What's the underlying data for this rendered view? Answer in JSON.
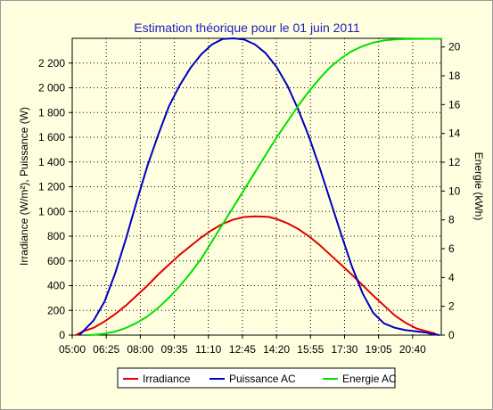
{
  "chart_data": {
    "type": "line",
    "title": "Estimation théorique pour le 01 juin 2011",
    "ylabel_left": "Irradiance (W/m²), Puissance (W)",
    "ylabel_right": "Energie (kWh)",
    "xlabel": "",
    "x_ticks": [
      "05:00",
      "06:25",
      "08:00",
      "09:35",
      "11:10",
      "12:45",
      "14:20",
      "15:55",
      "17:30",
      "19:05",
      "20:40"
    ],
    "x_range_minutes": [
      300,
      1330
    ],
    "y_left_ticks": [
      "0",
      "200",
      "400",
      "600",
      "800",
      "1 000",
      "1 200",
      "1 400",
      "1 600",
      "1 800",
      "2 000",
      "2 200"
    ],
    "y_left_range": [
      0,
      2400
    ],
    "y_right_ticks": [
      "0",
      "2",
      "4",
      "6",
      "8",
      "10",
      "12",
      "14",
      "16",
      "18",
      "20"
    ],
    "y_right_range": [
      0,
      20.6
    ],
    "grid": true,
    "legend_position": "bottom",
    "series": [
      {
        "name": "Irradiance",
        "axis": "left",
        "color": "#e00000",
        "x": [
          310,
          330,
          360,
          390,
          420,
          450,
          480,
          510,
          540,
          570,
          600,
          630,
          660,
          690,
          720,
          750,
          780,
          810,
          840,
          850,
          870,
          900,
          930,
          960,
          990,
          1020,
          1050,
          1080,
          1110,
          1140,
          1170,
          1200,
          1230,
          1260,
          1290,
          1310,
          1320
        ],
        "y": [
          0,
          30,
          60,
          110,
          170,
          240,
          320,
          400,
          490,
          570,
          650,
          720,
          790,
          850,
          900,
          935,
          955,
          960,
          958,
          955,
          940,
          905,
          860,
          800,
          730,
          650,
          570,
          490,
          405,
          320,
          240,
          160,
          100,
          55,
          30,
          15,
          0
        ]
      },
      {
        "name": "Puissance AC",
        "axis": "left",
        "color": "#0000c0",
        "x": [
          320,
          340,
          360,
          390,
          420,
          450,
          480,
          510,
          540,
          570,
          600,
          630,
          660,
          690,
          720,
          750,
          780,
          810,
          840,
          870,
          900,
          930,
          960,
          990,
          1020,
          1050,
          1080,
          1110,
          1140,
          1170,
          1200,
          1230,
          1260,
          1290,
          1300,
          1315,
          1325
        ],
        "y": [
          0,
          60,
          120,
          270,
          500,
          780,
          1080,
          1370,
          1620,
          1850,
          2020,
          2160,
          2270,
          2350,
          2395,
          2400,
          2390,
          2350,
          2280,
          2170,
          2020,
          1830,
          1610,
          1360,
          1090,
          820,
          560,
          340,
          180,
          95,
          60,
          40,
          30,
          20,
          10,
          5,
          0
        ]
      },
      {
        "name": "Energie AC",
        "axis": "right",
        "color": "#00e000",
        "x": [
          340,
          360,
          390,
          420,
          450,
          480,
          510,
          540,
          570,
          600,
          630,
          660,
          690,
          720,
          750,
          780,
          810,
          840,
          870,
          900,
          930,
          960,
          990,
          1020,
          1050,
          1080,
          1110,
          1140,
          1170,
          1200,
          1230,
          1260,
          1290,
          1330
        ],
        "y": [
          0,
          0.02,
          0.1,
          0.25,
          0.5,
          0.85,
          1.3,
          1.9,
          2.6,
          3.4,
          4.3,
          5.3,
          6.5,
          7.7,
          8.9,
          10.1,
          11.3,
          12.5,
          13.7,
          14.8,
          15.9,
          16.9,
          17.8,
          18.6,
          19.2,
          19.7,
          20.05,
          20.3,
          20.45,
          20.52,
          20.55,
          20.56,
          20.57,
          20.57
        ]
      }
    ]
  }
}
